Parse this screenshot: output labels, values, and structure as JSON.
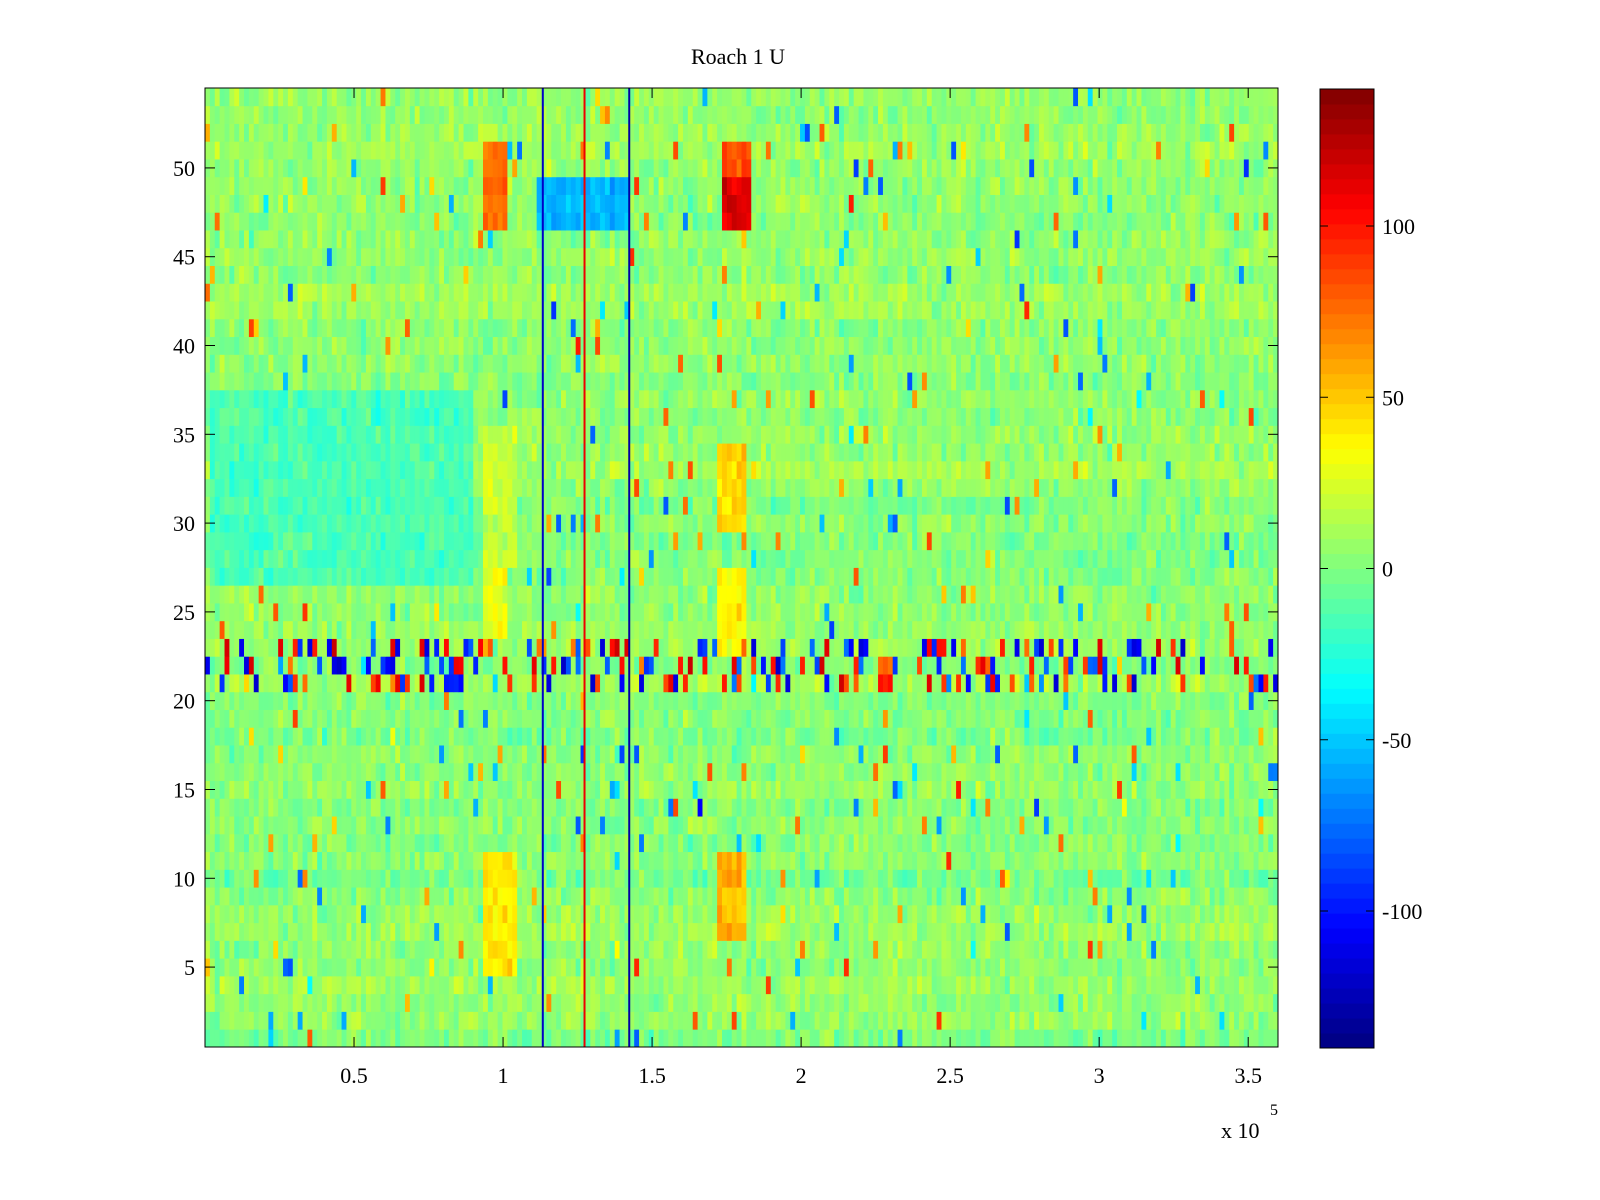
{
  "chart_data": {
    "type": "heatmap",
    "title": "Roach 1 U",
    "xlabel": "",
    "ylabel": "",
    "x_range": [
      1,
      360000
    ],
    "y_range": [
      0.5,
      54.5
    ],
    "rows": 54,
    "x_ticks": [
      {
        "value": 50000,
        "label": "0.5"
      },
      {
        "value": 100000,
        "label": "1"
      },
      {
        "value": 150000,
        "label": "1.5"
      },
      {
        "value": 200000,
        "label": "2"
      },
      {
        "value": 250000,
        "label": "2.5"
      },
      {
        "value": 300000,
        "label": "3"
      },
      {
        "value": 350000,
        "label": "3.5"
      }
    ],
    "x_exponent_label": {
      "base": "x 10",
      "exponent": "5"
    },
    "y_ticks": [
      {
        "value": 5,
        "label": "5"
      },
      {
        "value": 10,
        "label": "10"
      },
      {
        "value": 15,
        "label": "15"
      },
      {
        "value": 20,
        "label": "20"
      },
      {
        "value": 25,
        "label": "25"
      },
      {
        "value": 30,
        "label": "30"
      },
      {
        "value": 35,
        "label": "35"
      },
      {
        "value": 40,
        "label": "40"
      },
      {
        "value": 45,
        "label": "45"
      },
      {
        "value": 50,
        "label": "50"
      }
    ],
    "colorbar": {
      "colormap": "jet",
      "range": [
        -140,
        140
      ],
      "ticks": [
        {
          "value": 100,
          "label": "100"
        },
        {
          "value": 50,
          "label": "50"
        },
        {
          "value": 0,
          "label": "0"
        },
        {
          "value": -50,
          "label": "-50"
        },
        {
          "value": -100,
          "label": "-100"
        }
      ]
    },
    "background_level": 0,
    "features": [
      {
        "kind": "block",
        "x": [
          94000,
          102000
        ],
        "y": [
          47,
          51
        ],
        "value": 75
      },
      {
        "kind": "block",
        "x": [
          173000,
          183000
        ],
        "y": [
          47,
          51
        ],
        "value": 85
      },
      {
        "kind": "block",
        "x": [
          173000,
          183000
        ],
        "y": [
          47,
          49
        ],
        "value": 115
      },
      {
        "kind": "block",
        "x": [
          112000,
          142000
        ],
        "y": [
          47,
          49
        ],
        "value": -55
      },
      {
        "kind": "block",
        "x": [
          94000,
          104000
        ],
        "y": [
          5,
          11
        ],
        "value": 40
      },
      {
        "kind": "block",
        "x": [
          172000,
          182000
        ],
        "y": [
          7,
          11
        ],
        "value": 55
      },
      {
        "kind": "block",
        "x": [
          172000,
          182000
        ],
        "y": [
          30,
          34
        ],
        "value": 45
      },
      {
        "kind": "block",
        "x": [
          172000,
          182000
        ],
        "y": [
          23,
          27
        ],
        "value": 35
      },
      {
        "kind": "block",
        "x": [
          94000,
          102000
        ],
        "y": [
          24,
          27
        ],
        "value": 30
      },
      {
        "kind": "block",
        "x": [
          94000,
          104000
        ],
        "y": [
          28,
          35
        ],
        "value": 20
      },
      {
        "kind": "block",
        "x": [
          1000,
          90000
        ],
        "y": [
          27,
          37
        ],
        "value": -15
      },
      {
        "kind": "stripe_band",
        "x": [
          0,
          360000
        ],
        "y": [
          20.5,
          23.5
        ],
        "amplitude": 120
      },
      {
        "kind": "vline",
        "x": 113000,
        "value": -120
      },
      {
        "kind": "vline",
        "x": 142000,
        "value": -130
      },
      {
        "kind": "vline",
        "x": 127000,
        "value": 110
      }
    ]
  }
}
